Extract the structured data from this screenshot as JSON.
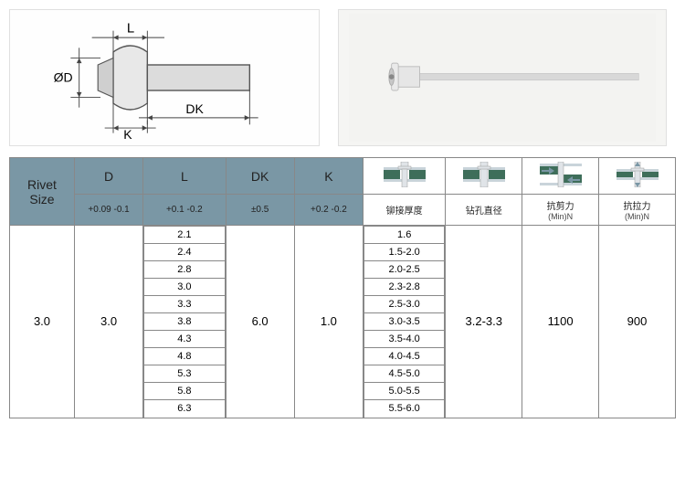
{
  "diagram": {
    "labels": {
      "L": "L",
      "D": "D",
      "DK": "DK",
      "K": "K",
      "diaPrefix": "Ø"
    }
  },
  "table": {
    "headers": {
      "rivetSize": "Rivet\nSize",
      "D": "D",
      "L": "L",
      "DK": "DK",
      "K": "K",
      "tol_D": "+0.09 -0.1",
      "tol_L": "+0.1 -0.2",
      "tol_DK": "±0.5",
      "tol_K": "+0.2 -0.2",
      "col_grip": "铆接厚度",
      "col_hole": "钻孔直径",
      "col_shear": "抗剪力",
      "col_shear_unit": "(Min)N",
      "col_tensile": "抗拉力",
      "col_tensile_unit": "(Min)N"
    },
    "row": {
      "rivetSize": "3.0",
      "D": "3.0",
      "L_values": [
        "2.1",
        "2.4",
        "2.8",
        "3.0",
        "3.3",
        "3.8",
        "4.3",
        "4.8",
        "5.3",
        "5.8",
        "6.3"
      ],
      "DK": "6.0",
      "K": "1.0",
      "grip_values": [
        "1.6",
        "1.5-2.0",
        "2.0-2.5",
        "2.3-2.8",
        "2.5-3.0",
        "3.0-3.5",
        "3.5-4.0",
        "4.0-4.5",
        "4.5-5.0",
        "5.0-5.5",
        "5.5-6.0"
      ],
      "hole": "3.2-3.3",
      "shear": "1100",
      "tensile": "900"
    }
  },
  "colors": {
    "headerBg": "#7a97a5",
    "border": "#888888",
    "iconPlate": "#c9d4da",
    "iconSubstrate": "#3e6e5a",
    "iconRivet": "#e0e4e8"
  }
}
